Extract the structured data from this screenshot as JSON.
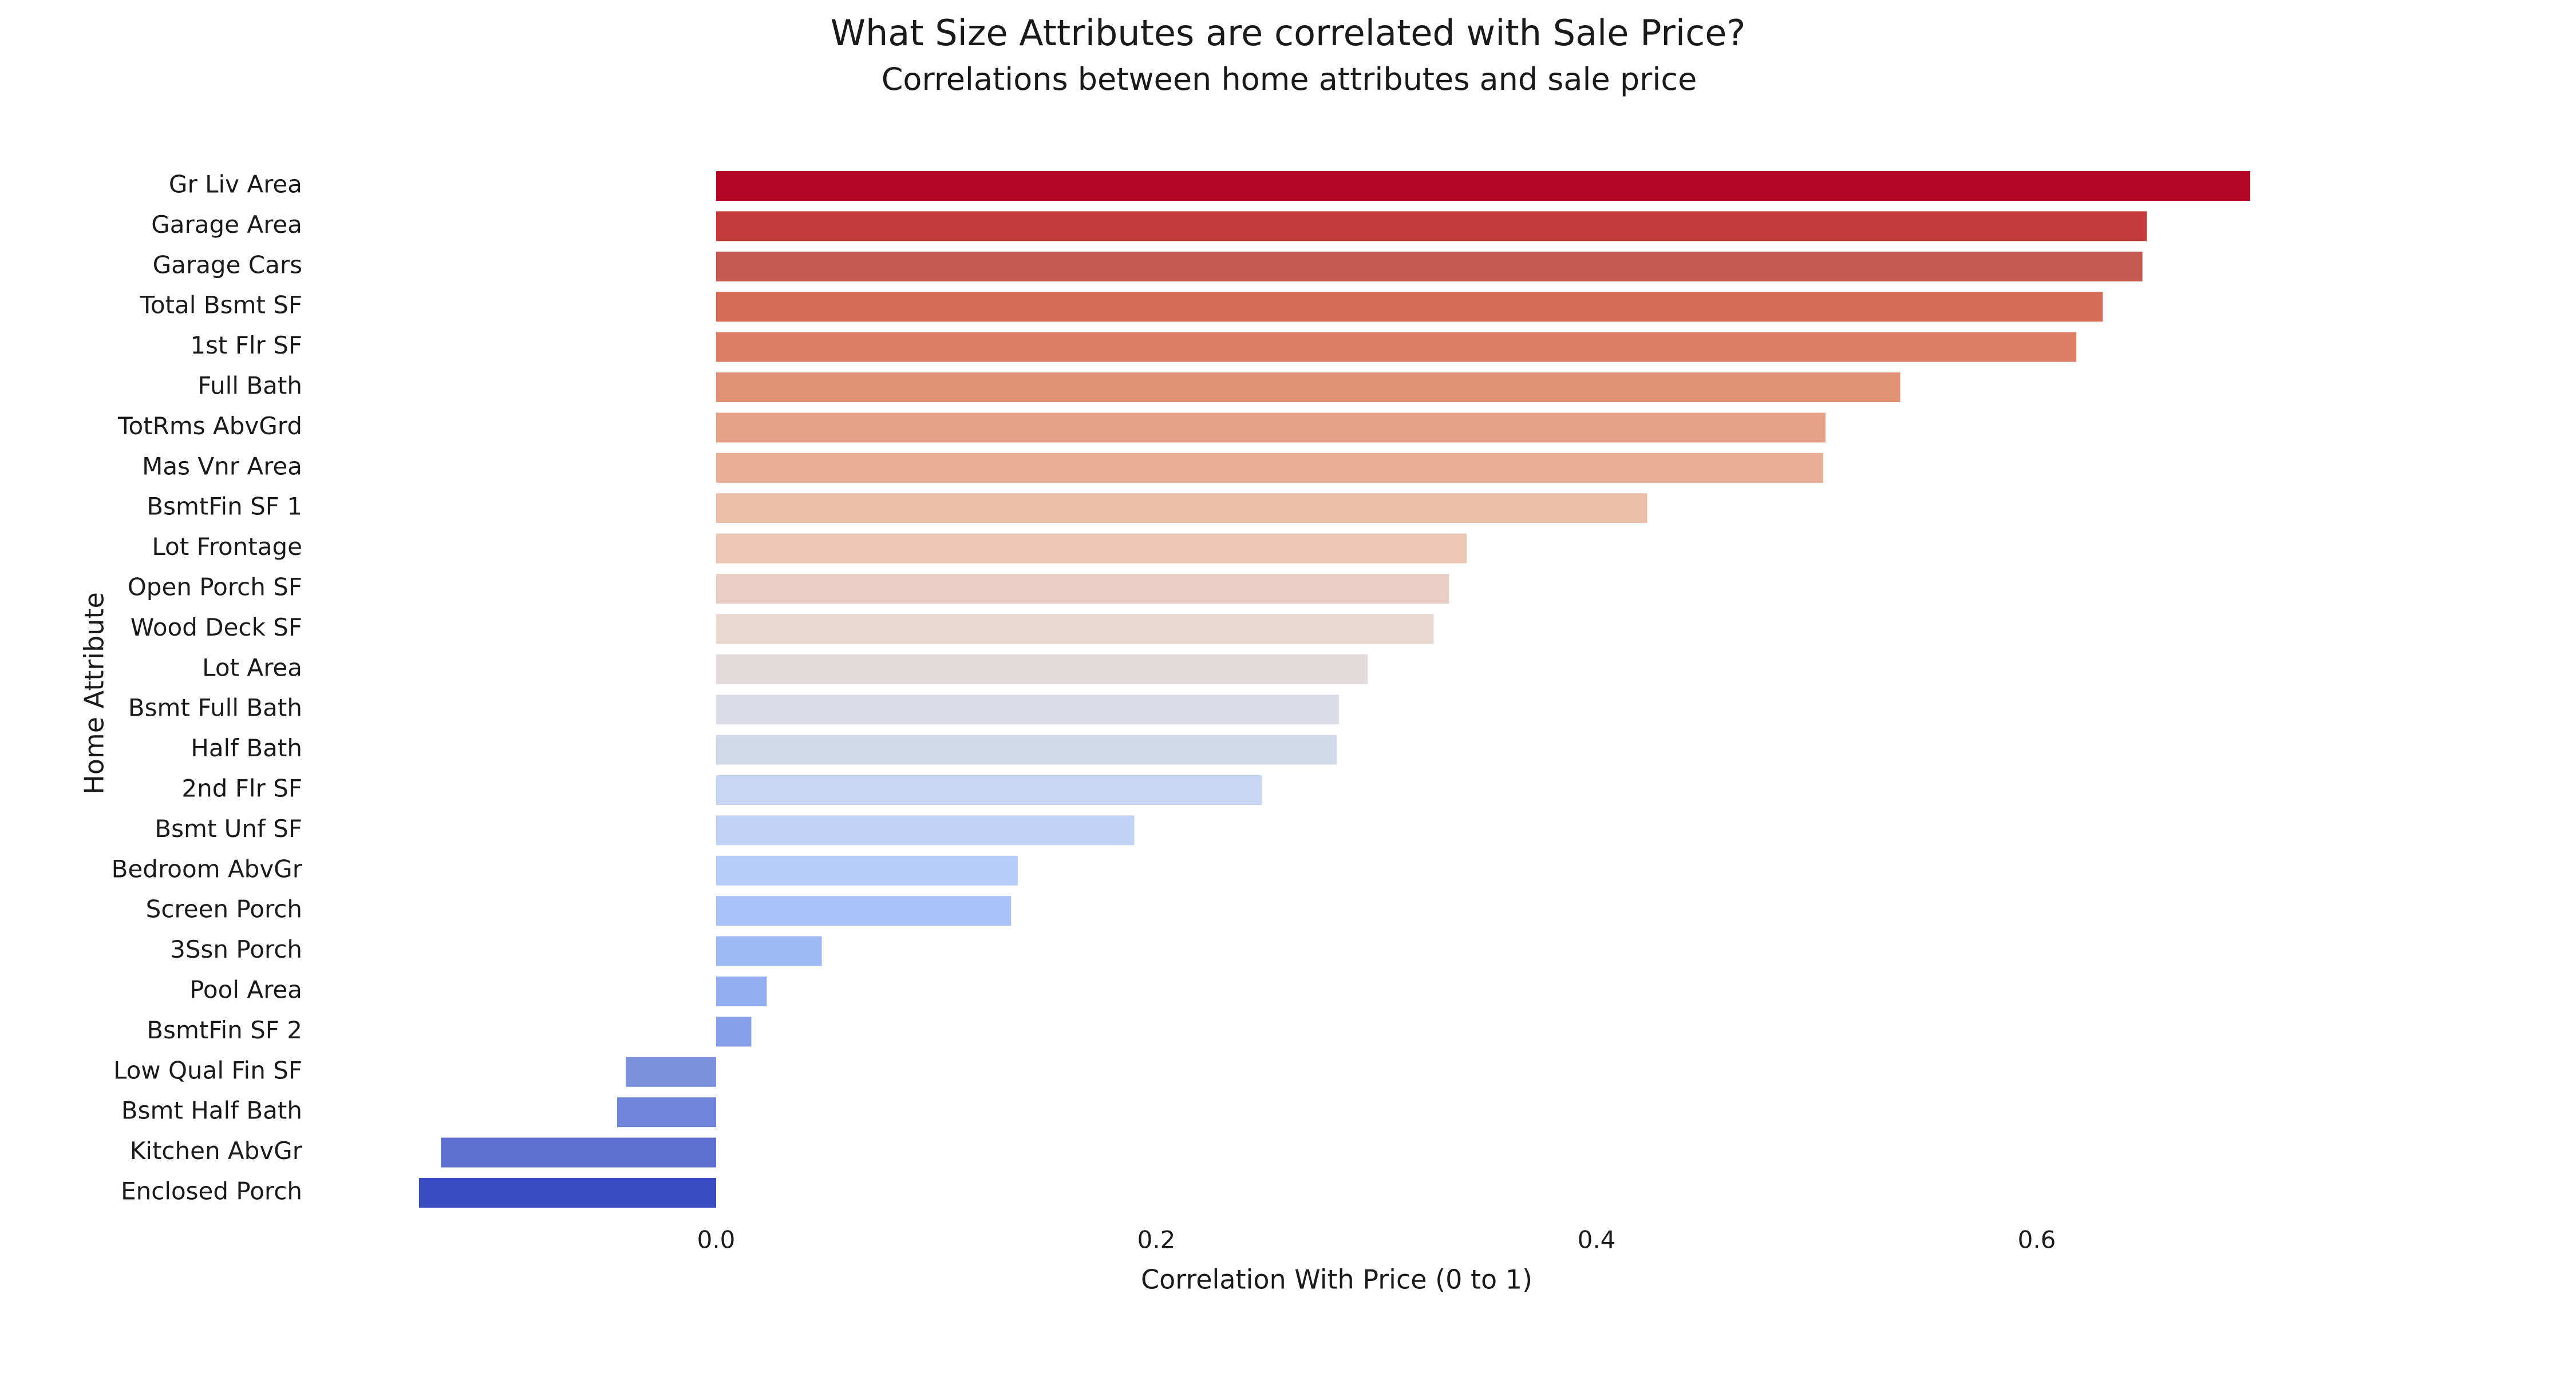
{
  "chart_data": {
    "type": "bar",
    "orientation": "horizontal",
    "title": "What Size Attributes are correlated with Sale Price?",
    "subtitle": "Correlations between home attributes and sale price",
    "xlabel": "Correlation With Price (0 to 1)",
    "ylabel": "Home Attribute",
    "xlim": [
      -0.135,
      0.71
    ],
    "xticks": [
      0.0,
      0.2,
      0.4,
      0.6
    ],
    "xtick_labels": [
      "0.0",
      "0.2",
      "0.4",
      "0.6"
    ],
    "grid": false,
    "legend": "none",
    "colormap": "coolwarm",
    "categories": [
      "Gr Liv Area",
      "Garage Area",
      "Garage Cars",
      "Total Bsmt SF",
      "1st Flr SF",
      "Full Bath",
      "TotRms AbvGrd",
      "Mas Vnr Area",
      "BsmtFin SF 1",
      "Lot Frontage",
      "Open Porch SF",
      "Wood Deck SF",
      "Lot Area",
      "Bsmt Full Bath",
      "Half Bath",
      "2nd Flr SF",
      "Bsmt Unf SF",
      "Bedroom AbvGr",
      "Screen Porch",
      "3Ssn Porch",
      "Pool Area",
      "BsmtFin SF 2",
      "Low Qual Fin SF",
      "Bsmt Half Bath",
      "Kitchen AbvGr",
      "Enclosed Porch"
    ],
    "values": [
      0.697,
      0.65,
      0.648,
      0.63,
      0.618,
      0.538,
      0.504,
      0.503,
      0.423,
      0.341,
      0.333,
      0.326,
      0.296,
      0.283,
      0.282,
      0.248,
      0.19,
      0.137,
      0.134,
      0.048,
      0.023,
      0.016,
      -0.041,
      -0.045,
      -0.125,
      -0.135
    ],
    "colors": [
      "#b40426",
      "#c33a3a",
      "#c7584f",
      "#d56a55",
      "#dc7d66",
      "#e09175",
      "#e6a287",
      "#e9af97",
      "#ecbea8",
      "#ecc7b5",
      "#e9cfc3",
      "#e8d6cf",
      "#e2dadb",
      "#dadde6",
      "#d2d9ea",
      "#c7d6f2",
      "#c0d3f5",
      "#b5cdf8",
      "#a9c1f7",
      "#9fb9f5",
      "#93adf0",
      "#889fe9",
      "#7c92e1",
      "#6f83d8",
      "#5f6fcf",
      "#3b4cc0"
    ]
  }
}
